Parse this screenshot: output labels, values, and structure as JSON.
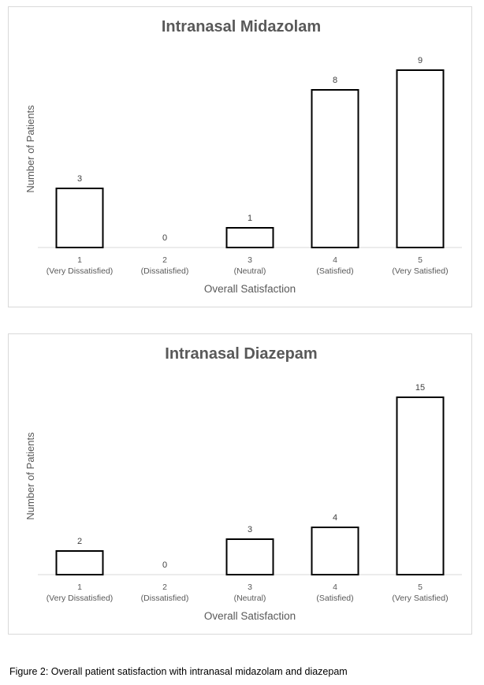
{
  "chart_data": [
    {
      "type": "bar",
      "title": "Intranasal Midazolam",
      "xlabel": "Overall Satisfaction",
      "ylabel": "Number of Patients",
      "categories": [
        [
          "1",
          "(Very Dissatisfied)"
        ],
        [
          "2",
          "(Dissatisfied)"
        ],
        [
          "3",
          "(Neutral)"
        ],
        [
          "4",
          "(Satisfied)"
        ],
        [
          "5",
          "(Very Satisfied)"
        ]
      ],
      "values": [
        3,
        0,
        1,
        8,
        9
      ],
      "data_labels": true,
      "grid": false,
      "bar_fill": "#ffffff",
      "bar_stroke": "#000000"
    },
    {
      "type": "bar",
      "title": "Intranasal Diazepam",
      "xlabel": "Overall Satisfaction",
      "ylabel": "Number of Patients",
      "categories": [
        [
          "1",
          "(Very Dissatisfied)"
        ],
        [
          "2",
          "(Dissatisfied)"
        ],
        [
          "3",
          "(Neutral)"
        ],
        [
          "4",
          "(Satisfied)"
        ],
        [
          "5",
          "(Very Satisfied)"
        ]
      ],
      "values": [
        2,
        0,
        3,
        4,
        15
      ],
      "data_labels": true,
      "grid": false,
      "bar_fill": "#ffffff",
      "bar_stroke": "#000000"
    }
  ],
  "caption": "Figure 2: Overall patient satisfaction with intranasal midazolam and diazepam"
}
